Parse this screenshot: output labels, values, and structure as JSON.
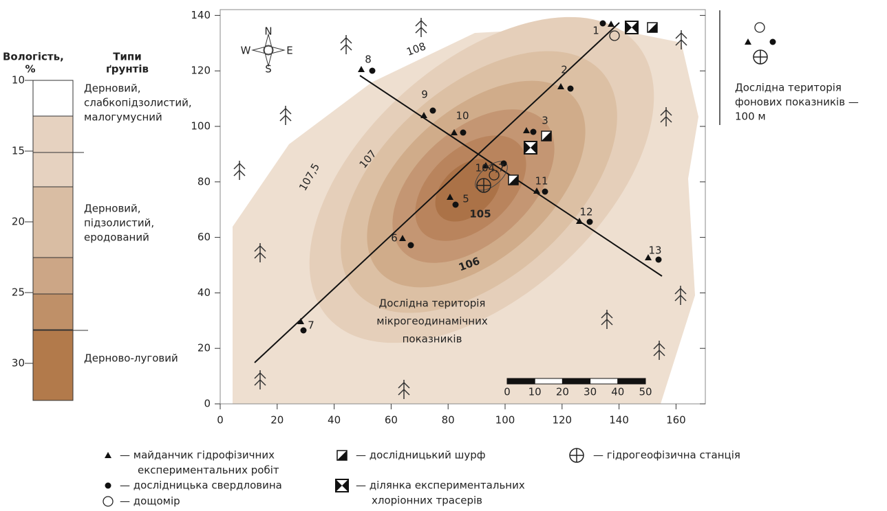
{
  "moisture_scale": {
    "title": [
      "Вологість,",
      "%"
    ],
    "ticks": [
      "10",
      "15",
      "20",
      "25",
      "30"
    ]
  },
  "soil_types": {
    "title": [
      "Типи",
      "ґрунтів"
    ],
    "items": [
      [
        "Дерновий,",
        "слабкопідзолистий,",
        "малогумусний"
      ],
      [
        "Дерновий,",
        "підзолистий,",
        "еродований"
      ],
      [
        "Дерново-луговий"
      ]
    ]
  },
  "map": {
    "xticks": [
      "0",
      "20",
      "40",
      "60",
      "80",
      "100",
      "120",
      "140",
      "160"
    ],
    "yticks": [
      "0",
      "20",
      "40",
      "60",
      "80",
      "100",
      "120",
      "140"
    ],
    "compass": [
      "N",
      "S",
      "W",
      "E"
    ],
    "contour_labels": [
      "108",
      "107,5",
      "107",
      "104,7",
      "105",
      "106"
    ],
    "site_labels": [
      "1",
      "2",
      "3",
      "5",
      "6",
      "7",
      "8",
      "9",
      "10",
      "11",
      "12",
      "13"
    ],
    "area_label": [
      "Дослідна територія",
      "мікрогеодинамічних",
      "показників"
    ],
    "scale_bar": [
      "0",
      "10",
      "20",
      "30",
      "40",
      "50"
    ]
  },
  "background_area": {
    "lines": [
      "Дослідна територія",
      "фонових показників —",
      "100 м"
    ]
  },
  "legend": {
    "items": [
      {
        "lines": [
          "— майданчик гідрофізичних",
          "експериментальних робіт"
        ]
      },
      {
        "lines": [
          "— дослідницька свердловина"
        ]
      },
      {
        "lines": [
          "— дощомір"
        ]
      },
      {
        "lines": [
          "— дослідницький шурф"
        ]
      },
      {
        "lines": [
          "— ділянка експериментальних",
          "хлоріонних трасерів"
        ]
      },
      {
        "lines": [
          "— гідрогеофізична станція"
        ]
      }
    ]
  }
}
